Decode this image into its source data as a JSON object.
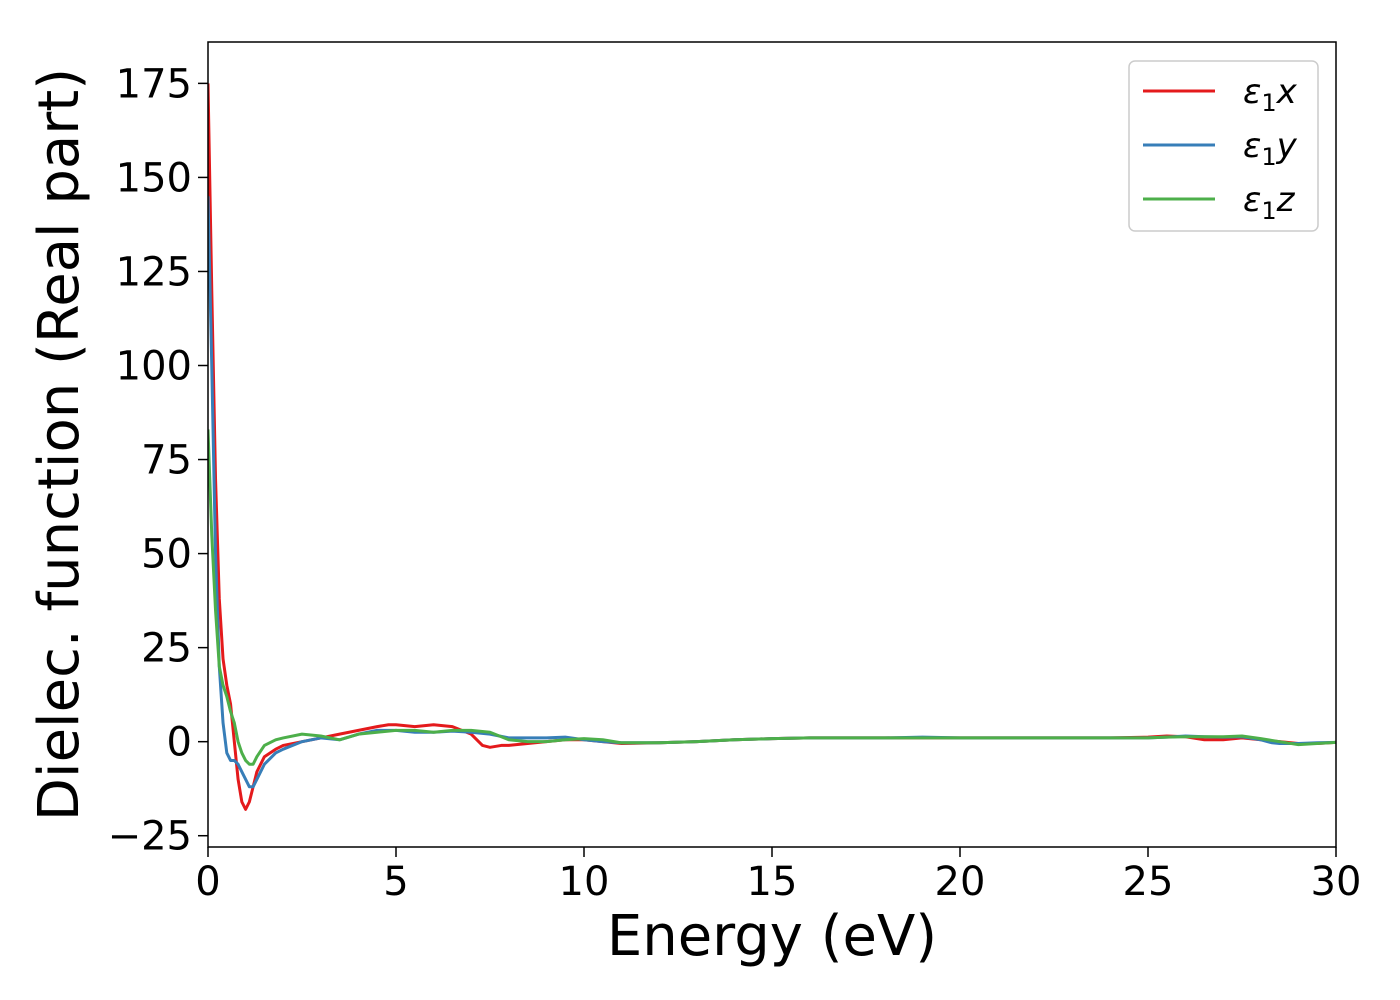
{
  "chart_data": {
    "type": "line",
    "title": "",
    "xlabel": "Energy (eV)",
    "ylabel": "Dielec. function (Real part)",
    "xlim": [
      0,
      30
    ],
    "ylim": [
      -28,
      186
    ],
    "xticks": [
      0,
      5,
      10,
      15,
      20,
      25,
      30
    ],
    "xtick_labels": [
      "0",
      "5",
      "10",
      "15",
      "20",
      "25",
      "30"
    ],
    "yticks": [
      -25,
      0,
      25,
      50,
      75,
      100,
      125,
      150,
      175
    ],
    "ytick_labels": [
      "−25",
      "0",
      "25",
      "50",
      "75",
      "100",
      "125",
      "150",
      "175"
    ],
    "grid": false,
    "legend_position": "top-right",
    "series": [
      {
        "name": "ε₁x",
        "legend_base": "ε",
        "legend_sub": "1",
        "legend_suffix": "x",
        "color": "#e41a1c",
        "x": [
          0,
          0.1,
          0.2,
          0.3,
          0.4,
          0.5,
          0.6,
          0.7,
          0.8,
          0.9,
          1.0,
          1.1,
          1.2,
          1.3,
          1.5,
          1.8,
          2.0,
          2.5,
          3.0,
          3.5,
          4.0,
          4.5,
          4.8,
          5.0,
          5.5,
          6.0,
          6.5,
          7.0,
          7.3,
          7.5,
          7.8,
          8.0,
          8.5,
          9.0,
          9.5,
          10.0,
          10.5,
          11.0,
          12.0,
          13.0,
          14.0,
          15.0,
          16.0,
          17.0,
          18.0,
          19.0,
          20.0,
          21.0,
          22.0,
          23.0,
          24.0,
          25.0,
          25.5,
          26.0,
          26.5,
          27.0,
          27.5,
          28.0,
          28.5,
          29.0,
          29.5,
          30.0
        ],
        "y": [
          175,
          120,
          70,
          38,
          22,
          15,
          10,
          0,
          -10,
          -16,
          -18,
          -16,
          -12,
          -8,
          -4,
          -2,
          -1,
          0,
          1,
          2,
          3,
          4,
          4.5,
          4.5,
          4,
          4.5,
          4,
          2,
          -1,
          -1.5,
          -1,
          -1,
          -0.5,
          0,
          0.5,
          0.5,
          0,
          -0.5,
          -0.3,
          0,
          0.5,
          0.8,
          1,
          1,
          1,
          1,
          1,
          1,
          1,
          1,
          1,
          1.2,
          1.5,
          1.3,
          0.5,
          0.5,
          1,
          0.5,
          0,
          -0.5,
          -0.5,
          -0.2
        ]
      },
      {
        "name": "ε₁y",
        "legend_base": "ε",
        "legend_sub": "1",
        "legend_suffix": "y",
        "color": "#377eb8",
        "x": [
          0,
          0.1,
          0.2,
          0.3,
          0.4,
          0.5,
          0.6,
          0.7,
          0.8,
          0.9,
          1.0,
          1.1,
          1.2,
          1.3,
          1.5,
          1.8,
          2.0,
          2.5,
          3.0,
          3.5,
          4.0,
          4.5,
          5.0,
          5.5,
          6.0,
          6.5,
          7.0,
          7.5,
          8.0,
          8.5,
          9.0,
          9.5,
          10.0,
          10.5,
          11.0,
          12.0,
          13.0,
          14.0,
          15.0,
          16.0,
          17.0,
          18.0,
          19.0,
          20.0,
          21.0,
          22.0,
          23.0,
          24.0,
          25.0,
          25.5,
          26.0,
          26.5,
          27.0,
          27.5,
          28.0,
          28.3,
          28.5,
          29.0,
          29.5,
          30.0
        ],
        "y": [
          145,
          100,
          50,
          20,
          5,
          -3,
          -5,
          -5,
          -6,
          -8,
          -10,
          -12,
          -12,
          -10,
          -6,
          -3,
          -2,
          0,
          1,
          0.5,
          2,
          3,
          3,
          2.5,
          2.5,
          2.8,
          2.5,
          2,
          1,
          1,
          1,
          1.2,
          0.5,
          0,
          -0.3,
          -0.3,
          0,
          0.5,
          0.8,
          1,
          1,
          1,
          1.2,
          1,
          1,
          1,
          1,
          1,
          1,
          1.2,
          1.5,
          1.3,
          1.2,
          1.3,
          0.5,
          -0.3,
          -0.5,
          -0.5,
          -0.3,
          -0.2
        ]
      },
      {
        "name": "ε₁z",
        "legend_base": "ε",
        "legend_sub": "1",
        "legend_suffix": "z",
        "color": "#4daf4a",
        "x": [
          0,
          0.1,
          0.2,
          0.3,
          0.4,
          0.5,
          0.6,
          0.7,
          0.8,
          0.9,
          1.0,
          1.1,
          1.2,
          1.3,
          1.5,
          1.8,
          2.0,
          2.5,
          3.0,
          3.5,
          4.0,
          4.5,
          5.0,
          5.5,
          6.0,
          6.5,
          7.0,
          7.5,
          8.0,
          8.5,
          9.0,
          9.5,
          10.0,
          10.5,
          11.0,
          12.0,
          13.0,
          14.0,
          15.0,
          16.0,
          17.0,
          18.0,
          19.0,
          20.0,
          21.0,
          22.0,
          23.0,
          24.0,
          25.0,
          25.5,
          26.0,
          26.5,
          27.0,
          27.5,
          28.0,
          28.5,
          29.0,
          29.5,
          30.0
        ],
        "y": [
          83,
          55,
          35,
          20,
          15,
          12,
          8,
          5,
          0,
          -3,
          -5,
          -6,
          -6,
          -4,
          -1,
          0.5,
          1,
          2,
          1.5,
          0.5,
          2,
          2.5,
          3,
          3,
          2.5,
          3,
          3,
          2.5,
          0.5,
          0,
          0,
          0.5,
          0.8,
          0.5,
          -0.3,
          -0.3,
          0,
          0.5,
          0.8,
          1,
          1,
          1,
          1,
          1,
          1,
          1,
          1,
          1,
          1,
          1.2,
          1.3,
          1.3,
          1.3,
          1.5,
          0.8,
          0,
          -0.8,
          -0.5,
          -0.2
        ]
      }
    ]
  }
}
